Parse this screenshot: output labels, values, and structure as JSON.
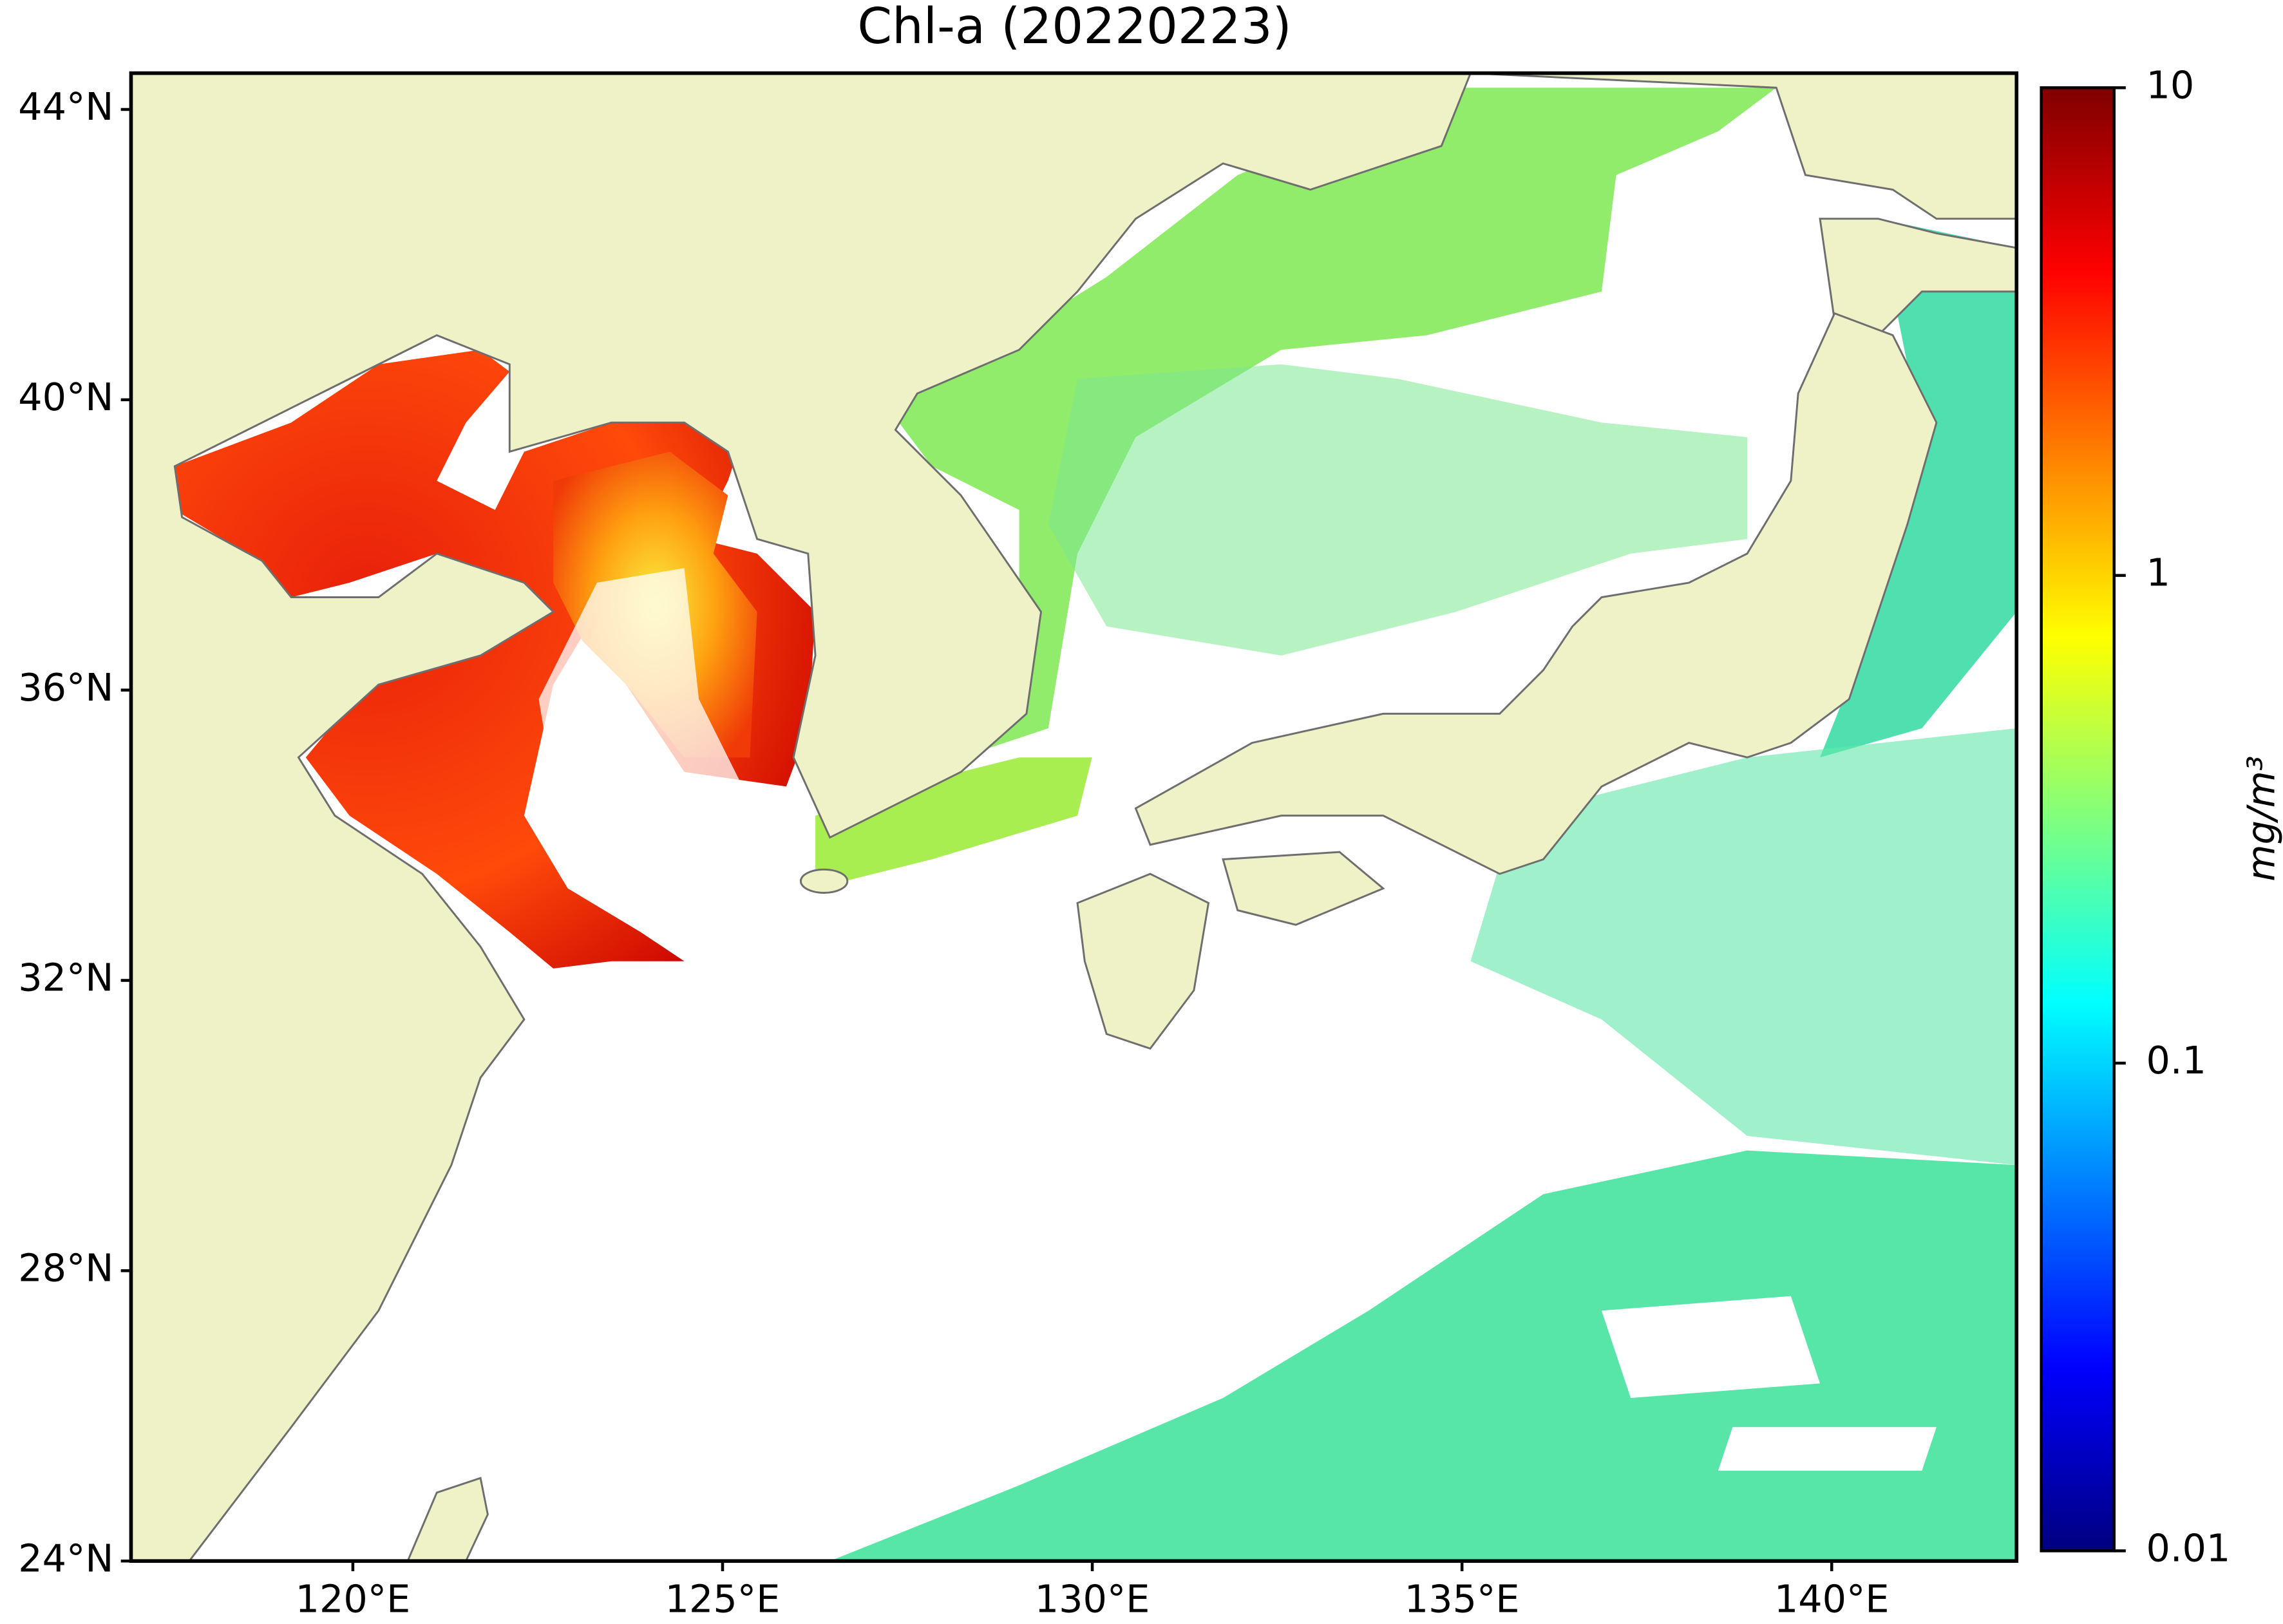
{
  "title": "Chl-a (20220223)",
  "map": {
    "xlim": [
      117,
      142.5
    ],
    "ylim": [
      24,
      44.5
    ],
    "xticks": [
      {
        "value": 120,
        "label": "120°E"
      },
      {
        "value": 125,
        "label": "125°E"
      },
      {
        "value": 130,
        "label": "130°E"
      },
      {
        "value": 135,
        "label": "135°E"
      },
      {
        "value": 140,
        "label": "140°E"
      }
    ],
    "yticks": [
      {
        "value": 24,
        "label": "24°N"
      },
      {
        "value": 28,
        "label": "28°N"
      },
      {
        "value": 32,
        "label": "32°N"
      },
      {
        "value": 36,
        "label": "36°N"
      },
      {
        "value": 40,
        "label": "40°N"
      },
      {
        "value": 44,
        "label": "44°N"
      }
    ]
  },
  "colorbar": {
    "label": "mg/m³",
    "lim": [
      0.01,
      10
    ],
    "ticks": [
      0.01,
      0.1,
      1,
      10
    ],
    "log": true,
    "colormap": "jet"
  }
}
